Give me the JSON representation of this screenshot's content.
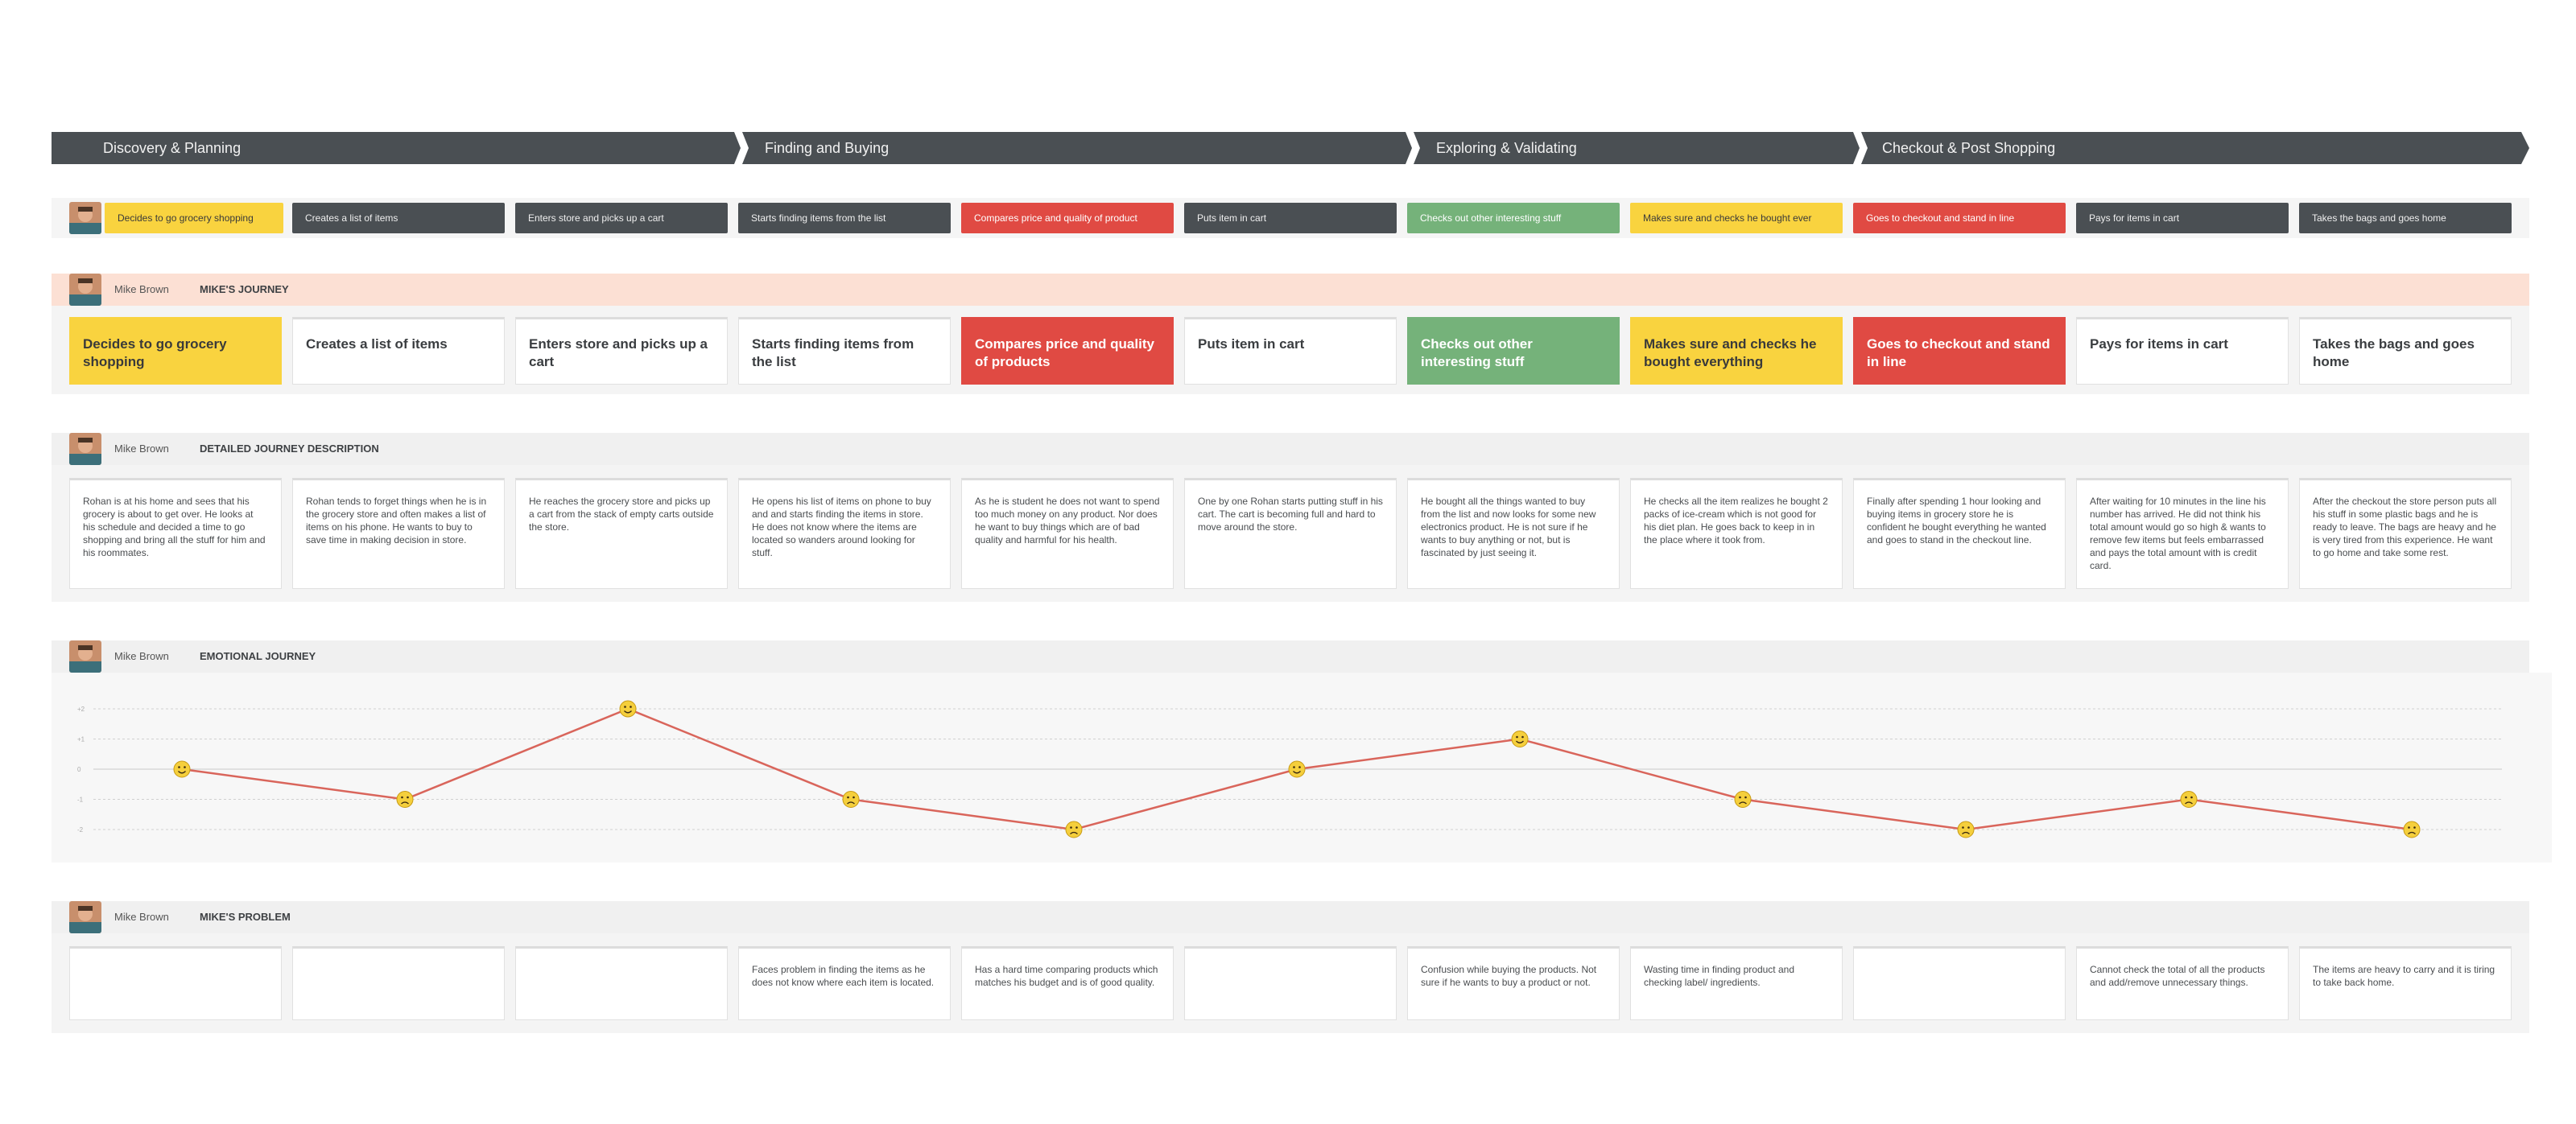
{
  "phases": [
    {
      "label": "Discovery & Planning"
    },
    {
      "label": "Finding and Buying"
    },
    {
      "label": "Exploring & Validating"
    },
    {
      "label": "Checkout & Post Shopping"
    }
  ],
  "colors": {
    "yellow": "#f9d33f",
    "gray": "#4a4f53",
    "red": "#e04a43",
    "green": "#75b27a",
    "line": "#d9655b"
  },
  "steps": [
    {
      "label": "Decides to go grocery shopping",
      "color": "yellow",
      "summary_color": "yellow"
    },
    {
      "label": "Creates a list of items",
      "color": "white",
      "summary_color": "gray"
    },
    {
      "label": "Enters store and picks up a cart",
      "color": "white",
      "summary_color": "gray"
    },
    {
      "label": "Starts finding items from the list",
      "color": "white",
      "summary_color": "gray"
    },
    {
      "label": "Compares price and quality of products",
      "summary_label": "Compares price and quality of product",
      "color": "red",
      "summary_color": "red"
    },
    {
      "label": "Puts item in cart",
      "color": "white",
      "summary_color": "gray"
    },
    {
      "label": "Checks out other interesting stuff",
      "color": "green",
      "summary_color": "green"
    },
    {
      "label": "Makes sure and checks he bought everything",
      "summary_label": "Makes sure and checks he bought ever",
      "color": "yellow",
      "summary_color": "yellow"
    },
    {
      "label": "Goes to checkout and stand in line",
      "color": "red",
      "summary_color": "red"
    },
    {
      "label": "Pays for items in cart",
      "color": "white",
      "summary_color": "gray"
    },
    {
      "label": "Takes the bags and goes home",
      "color": "white",
      "summary_color": "gray"
    }
  ],
  "persona": {
    "name": "Mike Brown"
  },
  "sections": {
    "journey": {
      "title": "MIKE'S JOURNEY"
    },
    "description": {
      "title": "DETAILED JOURNEY DESCRIPTION"
    },
    "emotional": {
      "title": "EMOTIONAL JOURNEY"
    },
    "problem": {
      "title": "MIKE'S PROBLEM"
    }
  },
  "descriptions": [
    "Rohan is at his home and sees that his grocery is about to get over. He looks at his schedule and decided a time to go shopping and bring all the stuff for him and his roommates.",
    "Rohan tends to forget things when he is in the grocery store and often makes a list of items on his phone. He wants to buy to save time in making decision in store.",
    "He reaches the grocery store and picks up a cart from the stack of empty carts outside the store.",
    "He opens his list of items on phone to buy and and starts finding the items in store. He does not know where the items are located so wanders around looking for stuff.",
    "As he is student he does not want to spend too much money on any product. Nor does he want to buy things which are of bad quality and harmful for his health.",
    "One by one Rohan starts putting stuff in his cart. The cart is becoming full and hard to move around the store.",
    "He bought all the things wanted to buy from the list and now looks for some new electronics product. He is not sure if he wants to buy anything or not, but is fascinated by just seeing it.",
    "He checks all the item realizes he bought 2 packs of ice-cream which is not good for his diet plan. He goes back to keep in in the place where it took from.",
    "Finally after spending 1 hour looking and buying items in grocery store he is confident he bought everything he wanted and goes to stand in the checkout line.",
    "After waiting for 10 minutes in the line his number has arrived. He did not think his total amount would go so high & wants to remove few items but feels embarrassed and pays the total amount with is credit card.",
    "After the checkout the store person puts all his stuff in some plastic bags and he is ready to leave. The bags are heavy and he is very tired from this experience. He want to go home and take some rest."
  ],
  "problems": [
    "",
    "",
    "",
    "Faces problem in finding the items as he does not know where each item is located.",
    "Has a hard time comparing products which matches his budget and is of good quality.",
    "",
    "Confusion while buying the products. Not sure if he wants to buy a product or not.",
    "Wasting time in finding product and checking label/ ingredients.",
    "",
    "Cannot check the total of all the products and add/remove unnecessary things.",
    "The items are heavy to carry and it is tiring to take back home."
  ],
  "chart_data": {
    "type": "line",
    "title": "Emotional Journey",
    "y_tick_labels": [
      "+2",
      "+1",
      "0",
      "-1",
      "-2"
    ],
    "ylim": [
      -2,
      2
    ],
    "x": [
      "Decides to go grocery shopping",
      "Creates a list of items",
      "Enters store and picks up a cart",
      "Starts finding items from the list",
      "Compares price and quality of products",
      "Puts item in cart",
      "Checks out other interesting stuff",
      "Makes sure and checks he bought everything",
      "Goes to checkout and stand in line",
      "Pays for items in cart",
      "Takes the bags and goes home"
    ],
    "values": [
      0,
      -1,
      2,
      -1,
      -2,
      0,
      1,
      -1,
      -2,
      -1,
      -2
    ]
  }
}
